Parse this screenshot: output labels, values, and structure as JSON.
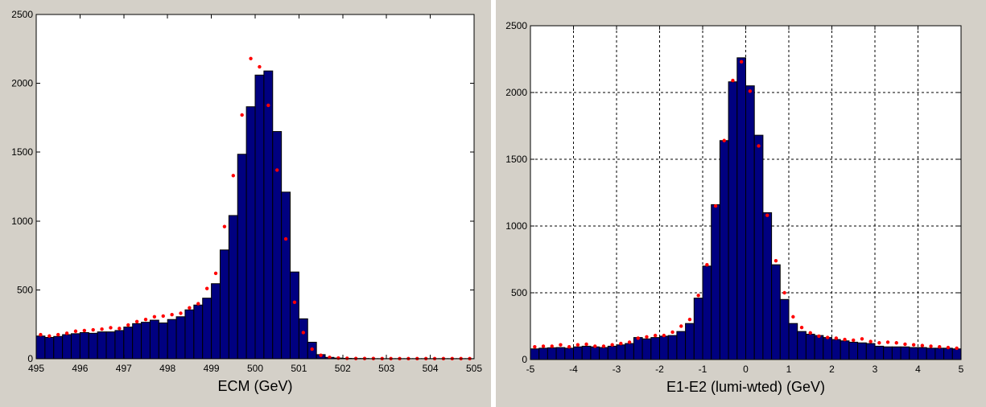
{
  "chart_data": [
    {
      "type": "bar",
      "title": "",
      "xlabel": "ECM (GeV)",
      "ylabel": "",
      "xlim": [
        495,
        505
      ],
      "ylim": [
        0,
        2500
      ],
      "grid": false,
      "x_ticks": [
        495,
        496,
        497,
        498,
        499,
        500,
        501,
        502,
        503,
        504,
        505
      ],
      "y_ticks": [
        0,
        500,
        1000,
        1500,
        2000,
        2500
      ],
      "bar_color": "#000080",
      "marker_color": "#ff0000",
      "x": [
        495.1,
        495.3,
        495.5,
        495.7,
        495.9,
        496.1,
        496.3,
        496.5,
        496.7,
        496.9,
        497.1,
        497.3,
        497.5,
        497.7,
        497.9,
        498.1,
        498.3,
        498.5,
        498.7,
        498.9,
        499.1,
        499.3,
        499.5,
        499.7,
        499.9,
        500.1,
        500.3,
        500.5,
        500.7,
        500.9,
        501.1,
        501.3,
        501.5,
        501.7,
        501.9,
        502.1,
        502.3,
        502.5,
        502.7,
        502.9,
        503.1,
        503.3,
        503.5,
        503.7,
        503.9,
        504.1,
        504.3,
        504.5,
        504.7,
        504.9
      ],
      "series": [
        {
          "type": "bar",
          "values": [
            165,
            155,
            162,
            175,
            182,
            190,
            185,
            195,
            195,
            205,
            230,
            255,
            265,
            280,
            260,
            285,
            305,
            355,
            390,
            440,
            545,
            790,
            1040,
            1485,
            1830,
            2060,
            2090,
            1650,
            1210,
            630,
            290,
            120,
            30,
            10,
            5,
            3,
            2,
            2,
            1,
            1,
            1,
            1,
            1,
            1,
            1,
            1,
            1,
            1,
            1,
            1
          ]
        },
        {
          "type": "scatter",
          "values": [
            175,
            165,
            175,
            185,
            200,
            205,
            210,
            215,
            225,
            220,
            245,
            270,
            285,
            305,
            310,
            320,
            330,
            370,
            400,
            510,
            620,
            960,
            1330,
            1770,
            2180,
            2120,
            1840,
            1370,
            870,
            410,
            190,
            70,
            25,
            10,
            5,
            3,
            2,
            2,
            2,
            1,
            1,
            1,
            1,
            1,
            1,
            1,
            1,
            1,
            1,
            1
          ]
        }
      ]
    },
    {
      "type": "bar",
      "title": "",
      "xlabel": "E1-E2 (lumi-wted) (GeV)",
      "ylabel": "",
      "xlim": [
        -5,
        5
      ],
      "ylim": [
        0,
        2500
      ],
      "grid": true,
      "x_ticks": [
        -5,
        -4,
        -3,
        -2,
        -1,
        0,
        1,
        2,
        3,
        4,
        5
      ],
      "y_ticks": [
        0,
        500,
        1000,
        1500,
        2000,
        2500
      ],
      "bar_color": "#000080",
      "marker_color": "#ff0000",
      "x": [
        -4.9,
        -4.7,
        -4.5,
        -4.3,
        -4.1,
        -3.9,
        -3.7,
        -3.5,
        -3.3,
        -3.1,
        -2.9,
        -2.7,
        -2.5,
        -2.3,
        -2.1,
        -1.9,
        -1.7,
        -1.5,
        -1.3,
        -1.1,
        -0.9,
        -0.7,
        -0.5,
        -0.3,
        -0.1,
        0.1,
        0.3,
        0.5,
        0.7,
        0.9,
        1.1,
        1.3,
        1.5,
        1.7,
        1.9,
        2.1,
        2.3,
        2.5,
        2.7,
        2.9,
        3.1,
        3.3,
        3.5,
        3.7,
        3.9,
        4.1,
        4.3,
        4.5,
        4.7,
        4.9
      ],
      "series": [
        {
          "type": "bar",
          "values": [
            80,
            85,
            88,
            90,
            85,
            95,
            100,
            95,
            90,
            100,
            110,
            120,
            165,
            155,
            165,
            175,
            180,
            210,
            270,
            460,
            700,
            1160,
            1640,
            2080,
            2260,
            2050,
            1680,
            1100,
            710,
            450,
            270,
            210,
            190,
            180,
            165,
            150,
            140,
            130,
            125,
            120,
            100,
            95,
            95,
            95,
            90,
            90,
            85,
            85,
            85,
            80
          ]
        },
        {
          "type": "scatter",
          "values": [
            95,
            100,
            100,
            110,
            95,
            110,
            115,
            100,
            100,
            110,
            120,
            130,
            160,
            170,
            180,
            180,
            205,
            250,
            300,
            480,
            710,
            1150,
            1640,
            2090,
            2230,
            2010,
            1600,
            1080,
            740,
            500,
            320,
            240,
            200,
            175,
            165,
            160,
            150,
            145,
            155,
            135,
            125,
            130,
            125,
            115,
            110,
            105,
            100,
            95,
            90,
            85
          ]
        }
      ]
    }
  ]
}
